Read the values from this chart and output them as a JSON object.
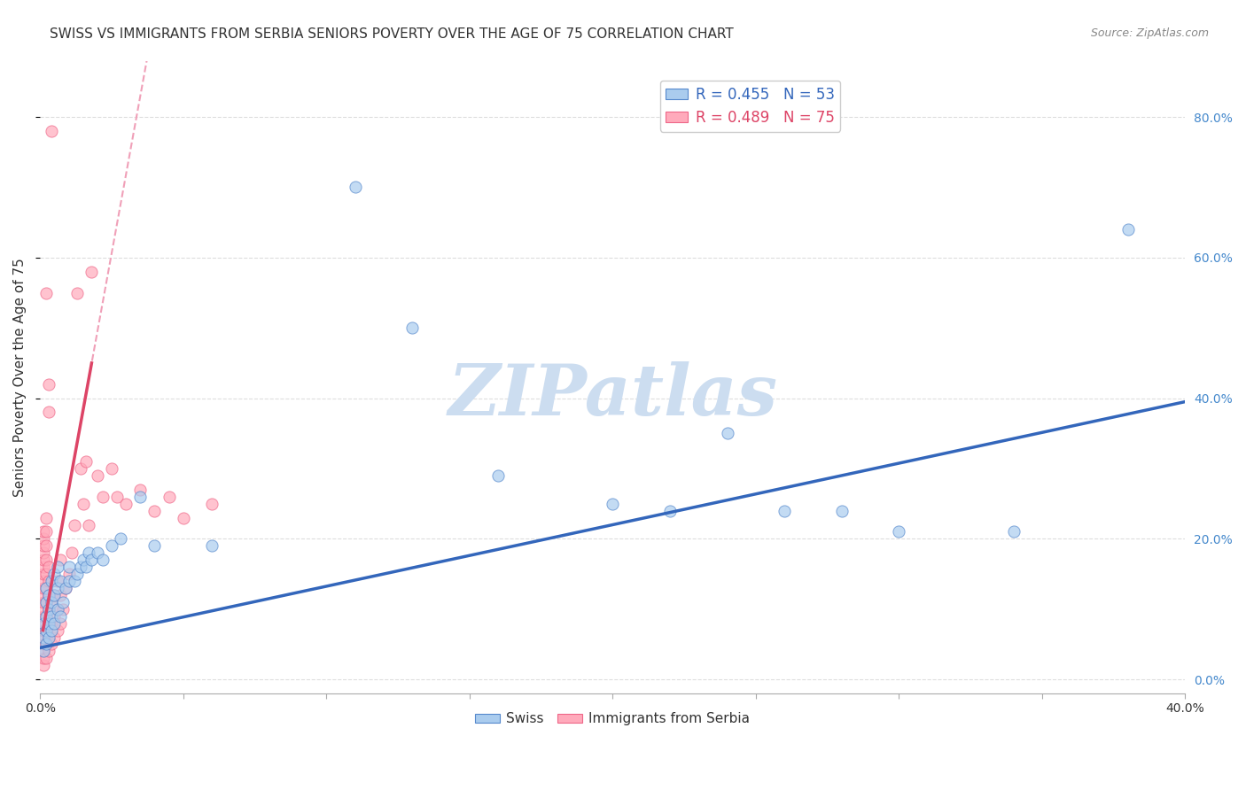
{
  "title": "SWISS VS IMMIGRANTS FROM SERBIA SENIORS POVERTY OVER THE AGE OF 75 CORRELATION CHART",
  "source": "Source: ZipAtlas.com",
  "ylabel": "Seniors Poverty Over the Age of 75",
  "xlim": [
    0.0,
    0.4
  ],
  "ylim": [
    -0.02,
    0.88
  ],
  "xticks": [
    0.0,
    0.05,
    0.1,
    0.15,
    0.2,
    0.25,
    0.3,
    0.35,
    0.4
  ],
  "yticks": [
    0.0,
    0.2,
    0.4,
    0.6,
    0.8
  ],
  "ytick_labels": [
    "0.0%",
    "20.0%",
    "40.0%",
    "60.0%",
    "80.0%"
  ],
  "swiss_color": "#aaccee",
  "serbia_color": "#ffaabb",
  "swiss_edge_color": "#5588cc",
  "serbia_edge_color": "#ee6688",
  "swiss_line_color": "#3366bb",
  "serbia_line_color": "#dd4466",
  "serbia_dash_color": "#f0a0b8",
  "swiss_R": 0.455,
  "swiss_N": 53,
  "serbia_R": 0.489,
  "serbia_N": 75,
  "swiss_scatter": [
    [
      0.001,
      0.04
    ],
    [
      0.001,
      0.06
    ],
    [
      0.001,
      0.08
    ],
    [
      0.002,
      0.05
    ],
    [
      0.002,
      0.09
    ],
    [
      0.002,
      0.11
    ],
    [
      0.002,
      0.13
    ],
    [
      0.002,
      0.07
    ],
    [
      0.003,
      0.06
    ],
    [
      0.003,
      0.1
    ],
    [
      0.003,
      0.12
    ],
    [
      0.003,
      0.08
    ],
    [
      0.004,
      0.07
    ],
    [
      0.004,
      0.09
    ],
    [
      0.004,
      0.11
    ],
    [
      0.004,
      0.14
    ],
    [
      0.005,
      0.08
    ],
    [
      0.005,
      0.12
    ],
    [
      0.005,
      0.15
    ],
    [
      0.006,
      0.1
    ],
    [
      0.006,
      0.13
    ],
    [
      0.006,
      0.16
    ],
    [
      0.007,
      0.09
    ],
    [
      0.007,
      0.14
    ],
    [
      0.008,
      0.11
    ],
    [
      0.009,
      0.13
    ],
    [
      0.01,
      0.14
    ],
    [
      0.01,
      0.16
    ],
    [
      0.012,
      0.14
    ],
    [
      0.013,
      0.15
    ],
    [
      0.014,
      0.16
    ],
    [
      0.015,
      0.17
    ],
    [
      0.016,
      0.16
    ],
    [
      0.017,
      0.18
    ],
    [
      0.018,
      0.17
    ],
    [
      0.02,
      0.18
    ],
    [
      0.022,
      0.17
    ],
    [
      0.025,
      0.19
    ],
    [
      0.028,
      0.2
    ],
    [
      0.035,
      0.26
    ],
    [
      0.04,
      0.19
    ],
    [
      0.06,
      0.19
    ],
    [
      0.11,
      0.7
    ],
    [
      0.13,
      0.5
    ],
    [
      0.16,
      0.29
    ],
    [
      0.2,
      0.25
    ],
    [
      0.22,
      0.24
    ],
    [
      0.24,
      0.35
    ],
    [
      0.26,
      0.24
    ],
    [
      0.28,
      0.24
    ],
    [
      0.3,
      0.21
    ],
    [
      0.34,
      0.21
    ],
    [
      0.38,
      0.64
    ]
  ],
  "serbia_scatter": [
    [
      0.001,
      0.02
    ],
    [
      0.001,
      0.03
    ],
    [
      0.001,
      0.04
    ],
    [
      0.001,
      0.05
    ],
    [
      0.001,
      0.06
    ],
    [
      0.001,
      0.07
    ],
    [
      0.001,
      0.08
    ],
    [
      0.001,
      0.09
    ],
    [
      0.001,
      0.1
    ],
    [
      0.001,
      0.11
    ],
    [
      0.001,
      0.12
    ],
    [
      0.001,
      0.13
    ],
    [
      0.001,
      0.14
    ],
    [
      0.001,
      0.15
    ],
    [
      0.001,
      0.16
    ],
    [
      0.001,
      0.17
    ],
    [
      0.001,
      0.18
    ],
    [
      0.001,
      0.19
    ],
    [
      0.001,
      0.2
    ],
    [
      0.001,
      0.21
    ],
    [
      0.002,
      0.03
    ],
    [
      0.002,
      0.05
    ],
    [
      0.002,
      0.07
    ],
    [
      0.002,
      0.09
    ],
    [
      0.002,
      0.11
    ],
    [
      0.002,
      0.13
    ],
    [
      0.002,
      0.15
    ],
    [
      0.002,
      0.17
    ],
    [
      0.002,
      0.19
    ],
    [
      0.002,
      0.21
    ],
    [
      0.002,
      0.23
    ],
    [
      0.003,
      0.04
    ],
    [
      0.003,
      0.06
    ],
    [
      0.003,
      0.08
    ],
    [
      0.003,
      0.1
    ],
    [
      0.003,
      0.12
    ],
    [
      0.003,
      0.14
    ],
    [
      0.003,
      0.16
    ],
    [
      0.004,
      0.05
    ],
    [
      0.004,
      0.08
    ],
    [
      0.004,
      0.11
    ],
    [
      0.005,
      0.06
    ],
    [
      0.005,
      0.09
    ],
    [
      0.005,
      0.12
    ],
    [
      0.006,
      0.07
    ],
    [
      0.006,
      0.1
    ],
    [
      0.006,
      0.14
    ],
    [
      0.007,
      0.08
    ],
    [
      0.007,
      0.12
    ],
    [
      0.007,
      0.17
    ],
    [
      0.008,
      0.1
    ],
    [
      0.009,
      0.13
    ],
    [
      0.01,
      0.15
    ],
    [
      0.011,
      0.18
    ],
    [
      0.012,
      0.22
    ],
    [
      0.013,
      0.55
    ],
    [
      0.014,
      0.3
    ],
    [
      0.015,
      0.25
    ],
    [
      0.016,
      0.31
    ],
    [
      0.017,
      0.22
    ],
    [
      0.018,
      0.58
    ],
    [
      0.02,
      0.29
    ],
    [
      0.022,
      0.26
    ],
    [
      0.025,
      0.3
    ],
    [
      0.027,
      0.26
    ],
    [
      0.03,
      0.25
    ],
    [
      0.035,
      0.27
    ],
    [
      0.04,
      0.24
    ],
    [
      0.045,
      0.26
    ],
    [
      0.05,
      0.23
    ],
    [
      0.06,
      0.25
    ],
    [
      0.004,
      0.78
    ],
    [
      0.002,
      0.55
    ],
    [
      0.003,
      0.42
    ],
    [
      0.003,
      0.38
    ]
  ],
  "watermark_text": "ZIPatlas",
  "watermark_color": "#ccddf0",
  "background_color": "#ffffff",
  "grid_color": "#dddddd",
  "title_fontsize": 11,
  "axis_label_fontsize": 11,
  "tick_fontsize": 10,
  "right_tick_color": "#4488cc",
  "legend_R_color": "#3366bb",
  "legend_label_color_swiss": "#3366bb",
  "legend_label_color_serbia": "#dd4466"
}
